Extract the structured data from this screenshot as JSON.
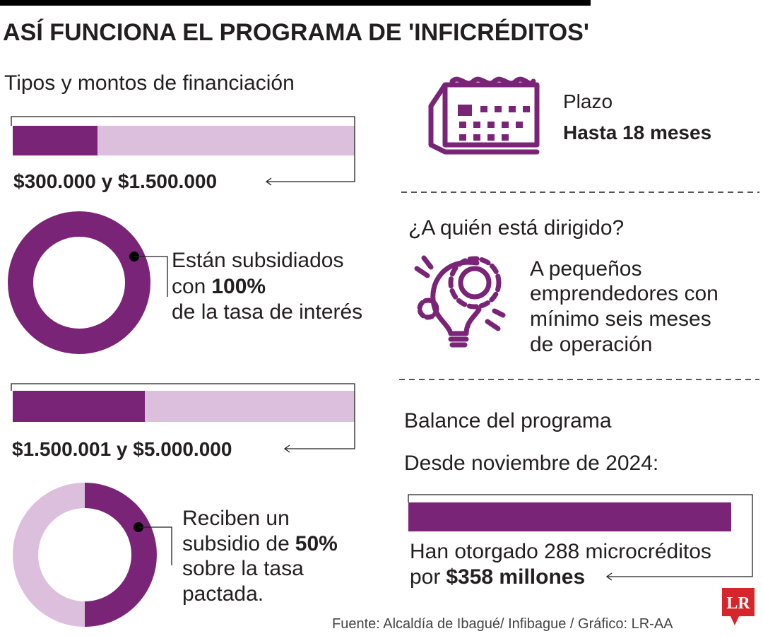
{
  "header": {
    "title": "ASÍ FUNCIONA EL PROGRAMA DE 'INFICRÉDITOS'"
  },
  "financing": {
    "title": "Tipos y montos de financiación",
    "tiers": [
      {
        "range": "$300.000 y $1.500.000",
        "line1": "Están subsidiados",
        "line2": "con",
        "highlight": "100%",
        "line3": "de la tasa de interés"
      },
      {
        "range": "$1.500.001 y $5.000.000",
        "line1": "Reciben un",
        "line2": "subsidio de",
        "highlight": "50%",
        "line3": "sobre la tasa",
        "line4": "pactada."
      }
    ]
  },
  "term": {
    "label": "Plazo",
    "value": "Hasta 18 meses"
  },
  "audience": {
    "title": "¿A quién está dirigido?",
    "lines": [
      "A pequeños",
      "emprendedores con",
      "mínimo seis meses",
      "de operación"
    ]
  },
  "balance": {
    "title": "Balance del programa",
    "subtitle": "Desde noviembre de 2024:",
    "line1": "Han otorgado 288 microcréditos",
    "line2": "por",
    "highlight": "$358 millones"
  },
  "footer": {
    "source": "Fuente: Alcaldía de Ibagué/ Infibague / Gráfico: LR-AA",
    "logo": "LR"
  }
}
